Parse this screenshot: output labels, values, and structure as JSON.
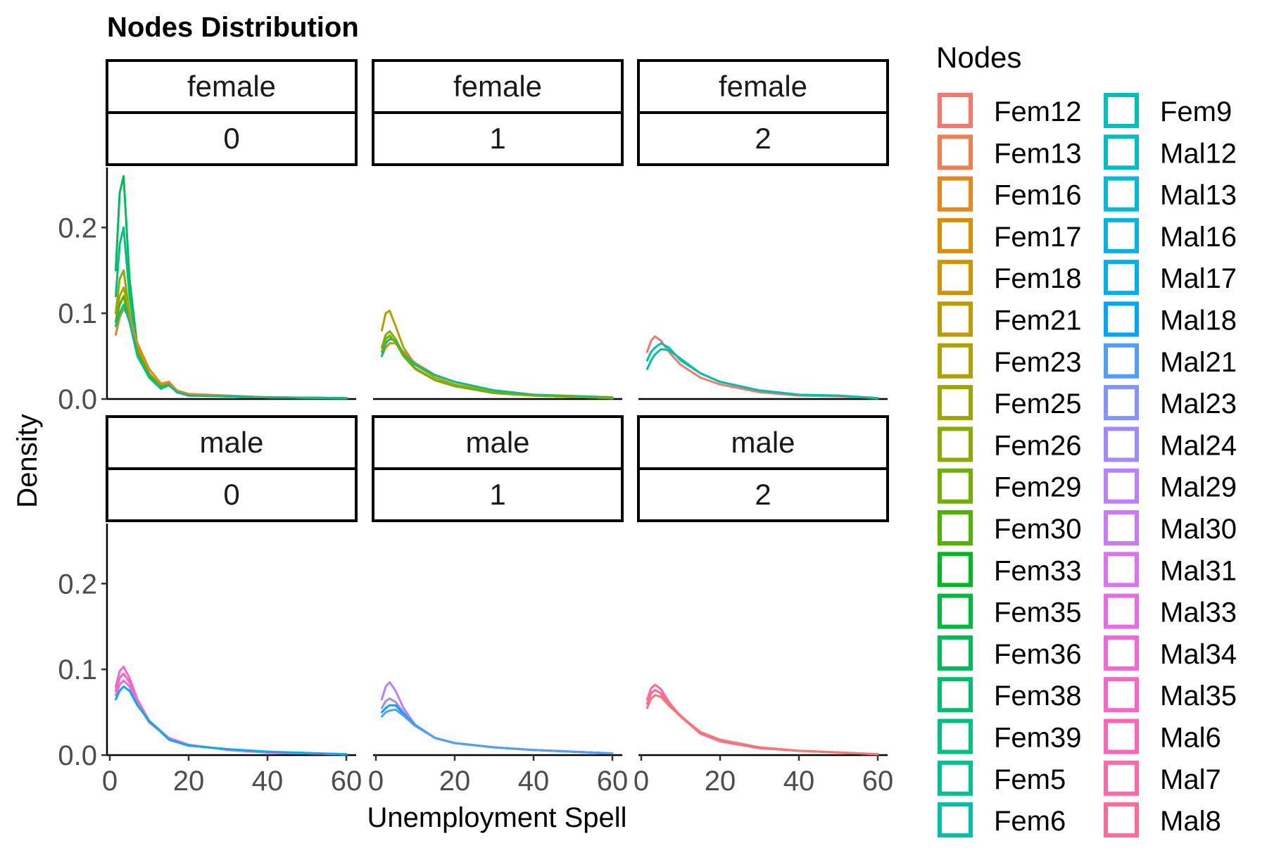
{
  "chart_data": {
    "type": "line",
    "title": "Nodes Distribution",
    "xlabel": "Unemployment Spell",
    "ylabel": "Density",
    "legend_title": "Nodes",
    "legend_position": "right",
    "grid": false,
    "xlim": [
      0,
      60
    ],
    "ylim": [
      0,
      0.27
    ],
    "x_ticks": [
      "0",
      "20",
      "40",
      "60"
    ],
    "y_ticks": [
      "0.0",
      "0.1",
      "0.2"
    ],
    "y_tick_values": [
      0,
      0.1,
      0.2
    ],
    "x_tick_values": [
      0,
      20,
      40,
      60
    ],
    "legend": [
      {
        "name": "Fem12",
        "color": "#F8766D"
      },
      {
        "name": "Fem13",
        "color": "#F07F4F"
      },
      {
        "name": "Fem16",
        "color": "#E7861B"
      },
      {
        "name": "Fem17",
        "color": "#DB8E00"
      },
      {
        "name": "Fem18",
        "color": "#CF9400"
      },
      {
        "name": "Fem21",
        "color": "#C09B00"
      },
      {
        "name": "Fem23",
        "color": "#B0A100"
      },
      {
        "name": "Fem25",
        "color": "#9DA700"
      },
      {
        "name": "Fem26",
        "color": "#88AC00"
      },
      {
        "name": "Fem29",
        "color": "#6FB000"
      },
      {
        "name": "Fem30",
        "color": "#4EB400"
      },
      {
        "name": "Fem33",
        "color": "#00B81F"
      },
      {
        "name": "Fem35",
        "color": "#00BA3D"
      },
      {
        "name": "Fem36",
        "color": "#00BC57"
      },
      {
        "name": "Fem38",
        "color": "#00BE6D"
      },
      {
        "name": "Fem39",
        "color": "#00C081"
      },
      {
        "name": "Fem5",
        "color": "#00C094"
      },
      {
        "name": "Fem6",
        "color": "#00C1A7"
      },
      {
        "name": "Fem9",
        "color": "#00BFB8"
      },
      {
        "name": "Mal12",
        "color": "#00BDC8"
      },
      {
        "name": "Mal13",
        "color": "#00BAD6"
      },
      {
        "name": "Mal16",
        "color": "#00B5E3"
      },
      {
        "name": "Mal17",
        "color": "#00AFEF"
      },
      {
        "name": "Mal18",
        "color": "#00A7F9"
      },
      {
        "name": "Mal21",
        "color": "#529EFF"
      },
      {
        "name": "Mal23",
        "color": "#8593FF"
      },
      {
        "name": "Mal24",
        "color": "#A389FF"
      },
      {
        "name": "Mal29",
        "color": "#BA80FF"
      },
      {
        "name": "Mal30",
        "color": "#CC78FA"
      },
      {
        "name": "Mal31",
        "color": "#DB72F1"
      },
      {
        "name": "Mal33",
        "color": "#E86BE6"
      },
      {
        "name": "Mal34",
        "color": "#F266D8"
      },
      {
        "name": "Mal35",
        "color": "#F964CA"
      },
      {
        "name": "Mal6",
        "color": "#FE65B9"
      },
      {
        "name": "Mal7",
        "color": "#FF67A8"
      },
      {
        "name": "Mal8",
        "color": "#FF6B96"
      }
    ],
    "panels": [
      {
        "row_label": "female",
        "col_label": "0",
        "series": [
          {
            "color": "#00BC57",
            "x": [
              1.5,
              2.5,
              3.5,
              5,
              7,
              10,
              13,
              15,
              17,
              20,
              30,
              40,
              60
            ],
            "y": [
              0.15,
              0.24,
              0.26,
              0.14,
              0.06,
              0.025,
              0.012,
              0.02,
              0.008,
              0.004,
              0.003,
              0.002,
              0.001
            ]
          },
          {
            "color": "#00C081",
            "x": [
              1.5,
              2.5,
              3.5,
              5,
              7,
              10,
              13,
              15,
              17,
              20,
              30,
              40,
              60
            ],
            "y": [
              0.12,
              0.18,
              0.2,
              0.12,
              0.055,
              0.025,
              0.012,
              0.018,
              0.008,
              0.004,
              0.003,
              0.002,
              0.001
            ]
          },
          {
            "color": "#88AC00",
            "x": [
              1.5,
              2.5,
              3.5,
              5,
              7,
              10,
              13,
              15,
              17,
              20,
              30,
              40,
              60
            ],
            "y": [
              0.1,
              0.14,
              0.15,
              0.1,
              0.055,
              0.028,
              0.013,
              0.018,
              0.009,
              0.005,
              0.003,
              0.002,
              0.001
            ]
          },
          {
            "color": "#B0A100",
            "x": [
              1.5,
              2.5,
              3.5,
              5,
              7,
              10,
              13,
              15,
              17,
              20,
              30,
              40,
              60
            ],
            "y": [
              0.09,
              0.12,
              0.13,
              0.1,
              0.06,
              0.03,
              0.015,
              0.02,
              0.01,
              0.005,
              0.003,
              0.002,
              0.001
            ]
          },
          {
            "color": "#4EB400",
            "x": [
              1.5,
              2.5,
              3.5,
              5,
              7,
              10,
              13,
              15,
              17,
              20,
              30,
              40,
              60
            ],
            "y": [
              0.09,
              0.11,
              0.12,
              0.09,
              0.055,
              0.028,
              0.014,
              0.017,
              0.009,
              0.005,
              0.003,
              0.002,
              0.001
            ]
          },
          {
            "color": "#E7861B",
            "x": [
              1.5,
              2.5,
              3.5,
              5,
              7,
              10,
              13,
              15,
              17,
              20,
              30,
              40,
              60
            ],
            "y": [
              0.075,
              0.095,
              0.105,
              0.095,
              0.065,
              0.035,
              0.018,
              0.02,
              0.01,
              0.006,
              0.004,
              0.002,
              0.001
            ]
          },
          {
            "color": "#00C094",
            "x": [
              1.5,
              2.5,
              3.5,
              5,
              7,
              10,
              13,
              15,
              17,
              20,
              30,
              40,
              60
            ],
            "y": [
              0.085,
              0.1,
              0.11,
              0.09,
              0.05,
              0.025,
              0.012,
              0.016,
              0.008,
              0.004,
              0.003,
              0.002,
              0.001
            ]
          }
        ]
      },
      {
        "row_label": "female",
        "col_label": "1",
        "series": [
          {
            "color": "#B0A100",
            "x": [
              1.5,
              2.5,
              3.5,
              5,
              7,
              10,
              15,
              20,
              30,
              40,
              60
            ],
            "y": [
              0.08,
              0.1,
              0.103,
              0.085,
              0.06,
              0.04,
              0.025,
              0.017,
              0.008,
              0.004,
              0.001
            ]
          },
          {
            "color": "#88AC00",
            "x": [
              1.5,
              2.5,
              3.5,
              5,
              7,
              10,
              15,
              20,
              30,
              40,
              60
            ],
            "y": [
              0.06,
              0.075,
              0.079,
              0.07,
              0.052,
              0.036,
              0.022,
              0.015,
              0.007,
              0.004,
              0.001
            ]
          },
          {
            "color": "#E7861B",
            "x": [
              1.5,
              2.5,
              3.5,
              5,
              7,
              10,
              15,
              20,
              30,
              40,
              60
            ],
            "y": [
              0.05,
              0.06,
              0.065,
              0.065,
              0.055,
              0.042,
              0.028,
              0.02,
              0.01,
              0.005,
              0.002
            ]
          },
          {
            "color": "#00C094",
            "x": [
              1.5,
              2.5,
              3.5,
              5,
              7,
              10,
              15,
              20,
              30,
              40,
              60
            ],
            "y": [
              0.05,
              0.065,
              0.07,
              0.068,
              0.052,
              0.04,
              0.028,
              0.02,
              0.01,
              0.005,
              0.002
            ]
          },
          {
            "color": "#6FB000",
            "x": [
              1.5,
              2.5,
              3.5,
              5,
              7,
              10,
              15,
              20,
              30,
              40,
              60
            ],
            "y": [
              0.055,
              0.07,
              0.074,
              0.066,
              0.05,
              0.035,
              0.022,
              0.015,
              0.007,
              0.004,
              0.001
            ]
          }
        ]
      },
      {
        "row_label": "female",
        "col_label": "2",
        "series": [
          {
            "color": "#F8766D",
            "x": [
              1.5,
              2.5,
              3.5,
              5,
              7,
              10,
              15,
              20,
              30,
              40,
              50,
              60
            ],
            "y": [
              0.055,
              0.068,
              0.073,
              0.068,
              0.055,
              0.04,
              0.025,
              0.017,
              0.008,
              0.004,
              0.003,
              0.001
            ]
          },
          {
            "color": "#00BFB8",
            "x": [
              1.5,
              2.5,
              3.5,
              5,
              7,
              10,
              15,
              20,
              30,
              40,
              50,
              60
            ],
            "y": [
              0.045,
              0.055,
              0.06,
              0.065,
              0.06,
              0.045,
              0.03,
              0.02,
              0.01,
              0.005,
              0.004,
              0.001
            ]
          },
          {
            "color": "#00C1A7",
            "x": [
              1.5,
              2.5,
              3.5,
              5,
              7,
              10,
              15,
              20,
              30,
              40,
              50,
              60
            ],
            "y": [
              0.035,
              0.045,
              0.052,
              0.058,
              0.057,
              0.047,
              0.03,
              0.02,
              0.01,
              0.005,
              0.004,
              0.001
            ]
          }
        ]
      },
      {
        "row_label": "male",
        "col_label": "0",
        "series": [
          {
            "color": "#F266D8",
            "x": [
              1.5,
              2.5,
              3.5,
              5,
              7,
              10,
              15,
              20,
              30,
              40,
              60
            ],
            "y": [
              0.08,
              0.098,
              0.103,
              0.09,
              0.065,
              0.04,
              0.02,
              0.012,
              0.006,
              0.003,
              0.001
            ]
          },
          {
            "color": "#FE65B9",
            "x": [
              1.5,
              2.5,
              3.5,
              5,
              7,
              10,
              15,
              20,
              30,
              40,
              60
            ],
            "y": [
              0.075,
              0.09,
              0.095,
              0.085,
              0.062,
              0.038,
              0.02,
              0.012,
              0.006,
              0.003,
              0.001
            ]
          },
          {
            "color": "#E86BE6",
            "x": [
              1.5,
              2.5,
              3.5,
              5,
              7,
              10,
              15,
              20,
              30,
              40,
              60
            ],
            "y": [
              0.07,
              0.082,
              0.087,
              0.08,
              0.06,
              0.038,
              0.02,
              0.012,
              0.006,
              0.003,
              0.001
            ]
          },
          {
            "color": "#00AFEF",
            "x": [
              1.5,
              2.5,
              3.5,
              5,
              7,
              10,
              15,
              20,
              30,
              40,
              60
            ],
            "y": [
              0.065,
              0.075,
              0.08,
              0.075,
              0.058,
              0.04,
              0.018,
              0.011,
              0.007,
              0.004,
              0.001
            ]
          }
        ]
      },
      {
        "row_label": "male",
        "col_label": "1",
        "series": [
          {
            "color": "#BA80FF",
            "x": [
              1.5,
              2.5,
              3.5,
              5,
              7,
              10,
              15,
              20,
              30,
              40,
              60
            ],
            "y": [
              0.065,
              0.08,
              0.085,
              0.075,
              0.055,
              0.035,
              0.02,
              0.014,
              0.009,
              0.006,
              0.002
            ]
          },
          {
            "color": "#A389FF",
            "x": [
              1.5,
              2.5,
              3.5,
              5,
              7,
              10,
              15,
              20,
              30,
              40,
              60
            ],
            "y": [
              0.055,
              0.063,
              0.066,
              0.062,
              0.05,
              0.035,
              0.02,
              0.014,
              0.009,
              0.006,
              0.002
            ]
          },
          {
            "color": "#00A7F9",
            "x": [
              1.5,
              2.5,
              3.5,
              5,
              7,
              10,
              15,
              20,
              30,
              40,
              60
            ],
            "y": [
              0.05,
              0.055,
              0.058,
              0.058,
              0.048,
              0.035,
              0.02,
              0.014,
              0.009,
              0.006,
              0.002
            ]
          },
          {
            "color": "#529EFF",
            "x": [
              1.5,
              2.5,
              3.5,
              5,
              7,
              10,
              15,
              20,
              30,
              40,
              60
            ],
            "y": [
              0.045,
              0.05,
              0.052,
              0.053,
              0.046,
              0.034,
              0.02,
              0.014,
              0.009,
              0.006,
              0.002
            ]
          }
        ]
      },
      {
        "row_label": "male",
        "col_label": "2",
        "series": [
          {
            "color": "#FF67A8",
            "x": [
              1.5,
              2.5,
              3.5,
              5,
              7,
              10,
              15,
              20,
              30,
              40,
              50,
              60
            ],
            "y": [
              0.065,
              0.078,
              0.082,
              0.077,
              0.062,
              0.045,
              0.025,
              0.016,
              0.008,
              0.005,
              0.003,
              0.001
            ]
          },
          {
            "color": "#FF6B96",
            "x": [
              1.5,
              2.5,
              3.5,
              5,
              7,
              10,
              15,
              20,
              30,
              40,
              50,
              60
            ],
            "y": [
              0.06,
              0.072,
              0.076,
              0.072,
              0.06,
              0.046,
              0.026,
              0.017,
              0.009,
              0.005,
              0.003,
              0.001
            ]
          },
          {
            "color": "#F8766D",
            "x": [
              1.5,
              2.5,
              3.5,
              5,
              7,
              10,
              15,
              20,
              30,
              40,
              50,
              60
            ],
            "y": [
              0.055,
              0.066,
              0.07,
              0.068,
              0.058,
              0.045,
              0.027,
              0.018,
              0.009,
              0.005,
              0.003,
              0.001
            ]
          }
        ]
      }
    ]
  }
}
